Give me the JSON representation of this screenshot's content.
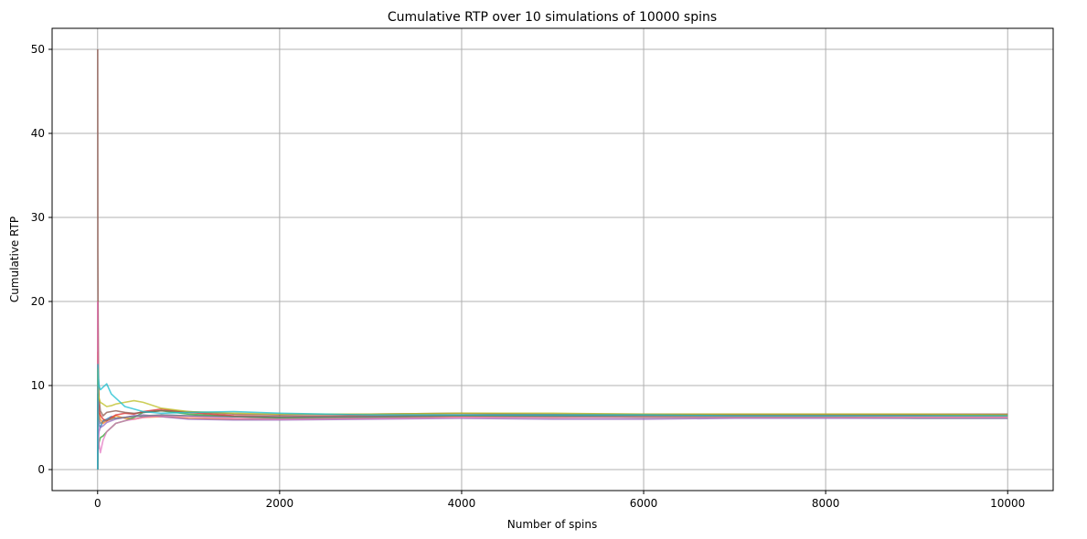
{
  "chart_data": {
    "type": "line",
    "title": "Cumulative RTP over 10 simulations of 10000 spins",
    "xlabel": "Number of spins",
    "ylabel": "Cumulative RTP",
    "xlim": [
      -500,
      10500
    ],
    "ylim": [
      -2.5,
      52.5
    ],
    "xticks": [
      0,
      2000,
      4000,
      6000,
      8000,
      10000
    ],
    "yticks": [
      0,
      10,
      20,
      30,
      40,
      50
    ],
    "grid": true,
    "legend": "none",
    "colors": [
      "#1f77b4",
      "#ff7f0e",
      "#2ca02c",
      "#d62728",
      "#9467bd",
      "#8c564b",
      "#e377c2",
      "#7f7f7f",
      "#bcbd22",
      "#17becf"
    ],
    "series": [
      {
        "x": [
          1,
          3,
          8,
          15,
          30,
          60,
          100,
          150,
          200,
          300,
          400,
          500,
          700,
          1000,
          1500,
          2000,
          3000,
          4000,
          5000,
          6000,
          7000,
          8000,
          9000,
          10000
        ],
        "values": [
          5.0,
          9.0,
          6.2,
          5.4,
          5.0,
          5.8,
          6.0,
          6.3,
          6.1,
          6.2,
          6.4,
          6.3,
          6.5,
          6.4,
          6.3,
          6.2,
          6.3,
          6.4,
          6.4,
          6.4,
          6.4,
          6.4,
          6.4,
          6.4
        ]
      },
      {
        "x": [
          1,
          3,
          8,
          15,
          30,
          60,
          100,
          150,
          200,
          300,
          400,
          500,
          700,
          1000,
          1500,
          2000,
          3000,
          4000,
          5000,
          6000,
          7000,
          8000,
          9000,
          10000
        ],
        "values": [
          0.0,
          14.0,
          8.0,
          7.0,
          6.0,
          5.5,
          5.8,
          6.0,
          6.4,
          6.1,
          6.0,
          6.2,
          6.3,
          6.1,
          6.0,
          6.0,
          6.1,
          6.3,
          6.2,
          6.3,
          6.3,
          6.3,
          6.3,
          6.3
        ]
      },
      {
        "x": [
          1,
          3,
          8,
          15,
          30,
          60,
          100,
          150,
          200,
          300,
          400,
          500,
          700,
          1000,
          1500,
          2000,
          3000,
          4000,
          5000,
          6000,
          7000,
          8000,
          9000,
          10000
        ],
        "values": [
          0.0,
          3.0,
          2.5,
          3.2,
          3.8,
          4.0,
          4.5,
          5.0,
          5.5,
          5.8,
          6.2,
          6.8,
          7.0,
          6.6,
          6.3,
          6.1,
          6.2,
          6.4,
          6.3,
          6.2,
          6.2,
          6.2,
          6.1,
          6.1
        ]
      },
      {
        "x": [
          1,
          3,
          8,
          15,
          30,
          60,
          100,
          150,
          200,
          300,
          400,
          500,
          700,
          1000,
          1500,
          2000,
          3000,
          4000,
          5000,
          6000,
          7000,
          8000,
          9000,
          10000
        ],
        "values": [
          0.0,
          20.0,
          10.0,
          7.0,
          6.5,
          6.0,
          5.8,
          6.2,
          6.5,
          6.7,
          6.6,
          6.9,
          7.2,
          6.8,
          6.4,
          6.3,
          6.4,
          6.5,
          6.5,
          6.5,
          6.5,
          6.5,
          6.5,
          6.5
        ]
      },
      {
        "x": [
          1,
          3,
          8,
          15,
          30,
          60,
          100,
          150,
          200,
          300,
          400,
          500,
          700,
          1000,
          1500,
          2000,
          3000,
          4000,
          5000,
          6000,
          7000,
          8000,
          9000,
          10000
        ],
        "values": [
          0.0,
          5.0,
          4.0,
          4.5,
          5.0,
          5.2,
          5.6,
          5.8,
          6.0,
          6.2,
          6.4,
          6.5,
          6.3,
          6.0,
          5.9,
          5.9,
          6.0,
          6.1,
          6.0,
          6.0,
          6.1,
          6.1,
          6.1,
          6.1
        ]
      },
      {
        "x": [
          1,
          3,
          8,
          15,
          30,
          60,
          100,
          150,
          200,
          300,
          400,
          500,
          700,
          1000,
          1500,
          2000,
          3000,
          4000,
          5000,
          6000,
          7000,
          8000,
          9000,
          10000
        ],
        "values": [
          50.0,
          26.0,
          12.0,
          8.5,
          7.0,
          6.4,
          6.8,
          6.9,
          7.0,
          6.8,
          6.7,
          6.8,
          7.0,
          6.9,
          6.6,
          6.5,
          6.6,
          6.7,
          6.6,
          6.6,
          6.6,
          6.6,
          6.6,
          6.6
        ]
      },
      {
        "x": [
          1,
          3,
          8,
          15,
          30,
          60,
          100,
          150,
          200,
          300,
          400,
          500,
          700,
          1000,
          1500,
          2000,
          3000,
          4000,
          5000,
          6000,
          7000,
          8000,
          9000,
          10000
        ],
        "values": [
          20.0,
          13.0,
          6.0,
          3.0,
          2.0,
          3.5,
          4.5,
          5.0,
          5.5,
          5.8,
          6.0,
          6.2,
          6.4,
          6.3,
          6.1,
          6.0,
          6.1,
          6.2,
          6.2,
          6.2,
          6.2,
          6.2,
          6.2,
          6.2
        ]
      },
      {
        "x": [
          1,
          3,
          8,
          15,
          30,
          60,
          100,
          150,
          200,
          300,
          400,
          500,
          700,
          1000,
          1500,
          2000,
          3000,
          4000,
          5000,
          6000,
          7000,
          8000,
          9000,
          10000
        ],
        "values": [
          0.0,
          9.0,
          7.0,
          6.0,
          5.5,
          5.7,
          5.9,
          6.0,
          6.1,
          6.2,
          6.3,
          6.4,
          6.5,
          6.4,
          6.3,
          6.3,
          6.3,
          6.4,
          6.4,
          6.4,
          6.4,
          6.4,
          6.4,
          6.4
        ]
      },
      {
        "x": [
          1,
          3,
          8,
          15,
          30,
          60,
          100,
          150,
          200,
          300,
          400,
          500,
          700,
          1000,
          1500,
          2000,
          3000,
          4000,
          5000,
          6000,
          7000,
          8000,
          9000,
          10000
        ],
        "values": [
          10.0,
          12.0,
          9.0,
          8.5,
          8.0,
          7.8,
          7.5,
          7.6,
          7.8,
          8.0,
          8.2,
          8.0,
          7.3,
          6.9,
          6.7,
          6.6,
          6.6,
          6.7,
          6.7,
          6.6,
          6.6,
          6.6,
          6.6,
          6.5
        ]
      },
      {
        "x": [
          1,
          3,
          8,
          15,
          30,
          60,
          100,
          150,
          200,
          300,
          400,
          500,
          700,
          1000,
          1500,
          2000,
          3000,
          4000,
          5000,
          6000,
          7000,
          8000,
          9000,
          10000
        ],
        "values": [
          0.0,
          12.5,
          11.0,
          10.0,
          9.5,
          9.8,
          10.2,
          9.0,
          8.5,
          7.5,
          7.2,
          6.9,
          6.7,
          6.8,
          6.9,
          6.7,
          6.5,
          6.5,
          6.5,
          6.5,
          6.4,
          6.4,
          6.4,
          6.4
        ]
      }
    ]
  }
}
